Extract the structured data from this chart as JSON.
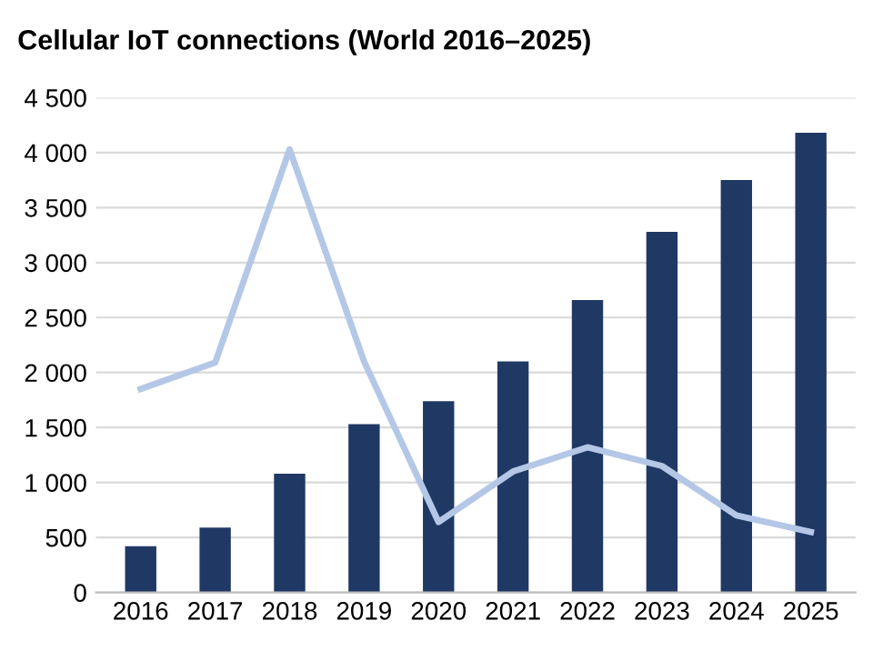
{
  "chart_data": {
    "type": "bar",
    "title": "Cellular IoT connections (World 2016–2025)",
    "categories": [
      "2016",
      "2017",
      "2018",
      "2019",
      "2020",
      "2021",
      "2022",
      "2023",
      "2024",
      "2025"
    ],
    "series": [
      {
        "color": "#203864",
        "values": [
          420,
          590,
          1080,
          1530,
          1740,
          2100,
          2660,
          3280,
          3750,
          4180
        ]
      },
      {
        "type": "line",
        "color": "#b4c7e7",
        "values": [
          1850,
          2090,
          4030,
          2100,
          640,
          1100,
          1320,
          1150,
          700,
          550
        ]
      }
    ],
    "ylim": [
      0,
      4500
    ],
    "yticks": [
      0,
      500,
      {
        "value": 1000,
        "label": "1 000"
      },
      {
        "value": 1500,
        "label": "1 500"
      },
      {
        "value": 2000,
        "label": "2 000"
      },
      {
        "value": 2500,
        "label": "2 500"
      },
      {
        "value": 3000,
        "label": "3 000"
      },
      {
        "value": 3500,
        "label": "3 500"
      },
      {
        "value": 4000,
        "label": "4 000"
      },
      {
        "value": 4500,
        "label": "4 500"
      }
    ],
    "grid": "y",
    "legend": false,
    "marker": "none",
    "line_style": "solid"
  }
}
